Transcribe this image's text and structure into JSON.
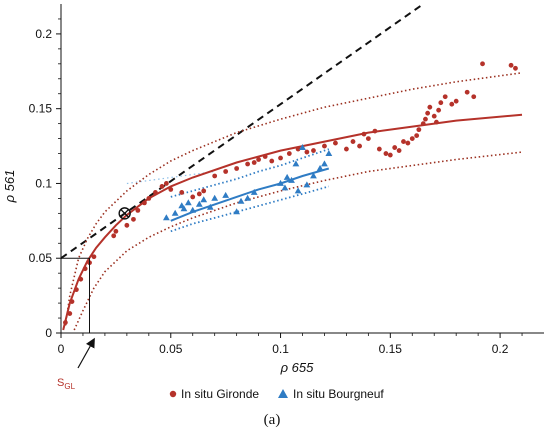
{
  "chart_data": {
    "type": "scatter",
    "title": "",
    "xlabel": "ρ 655",
    "ylabel": "ρ 561",
    "xlim": [
      0,
      0.22
    ],
    "ylim": [
      0,
      0.22
    ],
    "x_ticks": [
      "0",
      "0.05",
      "0.1",
      "0.15",
      "0.2"
    ],
    "y_ticks": [
      "0",
      "0.05",
      "0.1",
      "0.15",
      "0.2"
    ],
    "grid": false,
    "legend_position": "bottom",
    "panel_label": "(a)",
    "annotation_label": "S",
    "annotation_subscript": "GL",
    "colors": {
      "gironde": "#b5322a",
      "bourgneuf": "#2f7cc4",
      "envelope": "#9b3020",
      "dashed": "#111111"
    },
    "series": [
      {
        "name": "In situ Gironde",
        "marker": "circle",
        "points": [
          [
            0.002,
            0.007
          ],
          [
            0.004,
            0.013
          ],
          [
            0.005,
            0.021
          ],
          [
            0.007,
            0.029
          ],
          [
            0.009,
            0.036
          ],
          [
            0.011,
            0.043
          ],
          [
            0.013,
            0.047
          ],
          [
            0.015,
            0.051
          ],
          [
            0.024,
            0.065
          ],
          [
            0.025,
            0.068
          ],
          [
            0.03,
            0.072
          ],
          [
            0.033,
            0.076
          ],
          [
            0.035,
            0.082
          ],
          [
            0.038,
            0.087
          ],
          [
            0.04,
            0.09
          ],
          [
            0.043,
            0.094
          ],
          [
            0.046,
            0.098
          ],
          [
            0.048,
            0.1
          ],
          [
            0.05,
            0.096
          ],
          [
            0.055,
            0.094
          ],
          [
            0.06,
            0.091
          ],
          [
            0.063,
            0.093
          ],
          [
            0.065,
            0.095
          ],
          [
            0.07,
            0.105
          ],
          [
            0.075,
            0.108
          ],
          [
            0.08,
            0.11
          ],
          [
            0.085,
            0.113
          ],
          [
            0.088,
            0.114
          ],
          [
            0.09,
            0.116
          ],
          [
            0.093,
            0.118
          ],
          [
            0.096,
            0.115
          ],
          [
            0.1,
            0.117
          ],
          [
            0.104,
            0.12
          ],
          [
            0.108,
            0.123
          ],
          [
            0.112,
            0.121
          ],
          [
            0.115,
            0.122
          ],
          [
            0.12,
            0.125
          ],
          [
            0.125,
            0.127
          ],
          [
            0.13,
            0.123
          ],
          [
            0.133,
            0.128
          ],
          [
            0.136,
            0.125
          ],
          [
            0.138,
            0.133
          ],
          [
            0.14,
            0.13
          ],
          [
            0.143,
            0.135
          ],
          [
            0.145,
            0.123
          ],
          [
            0.148,
            0.12
          ],
          [
            0.15,
            0.119
          ],
          [
            0.152,
            0.124
          ],
          [
            0.154,
            0.122
          ],
          [
            0.156,
            0.128
          ],
          [
            0.158,
            0.127
          ],
          [
            0.16,
            0.13
          ],
          [
            0.162,
            0.132
          ],
          [
            0.163,
            0.136
          ],
          [
            0.165,
            0.14
          ],
          [
            0.166,
            0.143
          ],
          [
            0.167,
            0.147
          ],
          [
            0.168,
            0.151
          ],
          [
            0.17,
            0.145
          ],
          [
            0.171,
            0.141
          ],
          [
            0.172,
            0.149
          ],
          [
            0.173,
            0.154
          ],
          [
            0.175,
            0.158
          ],
          [
            0.178,
            0.153
          ],
          [
            0.18,
            0.155
          ],
          [
            0.185,
            0.161
          ],
          [
            0.188,
            0.158
          ],
          [
            0.192,
            0.18
          ],
          [
            0.205,
            0.179
          ],
          [
            0.207,
            0.177
          ]
        ]
      },
      {
        "name": "In situ Bourgneuf",
        "marker": "triangle",
        "points": [
          [
            0.048,
            0.077
          ],
          [
            0.052,
            0.08
          ],
          [
            0.055,
            0.085
          ],
          [
            0.056,
            0.083
          ],
          [
            0.058,
            0.087
          ],
          [
            0.06,
            0.082
          ],
          [
            0.063,
            0.086
          ],
          [
            0.065,
            0.089
          ],
          [
            0.068,
            0.084
          ],
          [
            0.07,
            0.09
          ],
          [
            0.075,
            0.092
          ],
          [
            0.08,
            0.081
          ],
          [
            0.082,
            0.088
          ],
          [
            0.085,
            0.09
          ],
          [
            0.088,
            0.094
          ],
          [
            0.1,
            0.1
          ],
          [
            0.102,
            0.097
          ],
          [
            0.103,
            0.104
          ],
          [
            0.105,
            0.102
          ],
          [
            0.107,
            0.113
          ],
          [
            0.108,
            0.095
          ],
          [
            0.11,
            0.124
          ],
          [
            0.112,
            0.099
          ],
          [
            0.115,
            0.105
          ],
          [
            0.118,
            0.11
          ],
          [
            0.12,
            0.113
          ],
          [
            0.122,
            0.12
          ]
        ]
      }
    ],
    "lines": {
      "dashed_1to1_like": [
        [
          0,
          0.05
        ],
        [
          0.165,
          0.22
        ]
      ],
      "gironde_fit": [
        [
          0.001,
          0.002
        ],
        [
          0.004,
          0.02
        ],
        [
          0.008,
          0.036
        ],
        [
          0.012,
          0.048
        ],
        [
          0.016,
          0.057
        ],
        [
          0.02,
          0.064
        ],
        [
          0.025,
          0.072
        ],
        [
          0.03,
          0.079
        ],
        [
          0.04,
          0.09
        ],
        [
          0.05,
          0.098
        ],
        [
          0.06,
          0.104
        ],
        [
          0.08,
          0.114
        ],
        [
          0.1,
          0.122
        ],
        [
          0.12,
          0.128
        ],
        [
          0.14,
          0.134
        ],
        [
          0.16,
          0.138
        ],
        [
          0.18,
          0.142
        ],
        [
          0.21,
          0.146
        ]
      ],
      "gironde_upper": [
        [
          0.002,
          0.005
        ],
        [
          0.004,
          0.025
        ],
        [
          0.008,
          0.05
        ],
        [
          0.012,
          0.063
        ],
        [
          0.016,
          0.073
        ],
        [
          0.02,
          0.081
        ],
        [
          0.03,
          0.095
        ],
        [
          0.04,
          0.106
        ],
        [
          0.05,
          0.115
        ],
        [
          0.06,
          0.122
        ],
        [
          0.08,
          0.134
        ],
        [
          0.1,
          0.143
        ],
        [
          0.12,
          0.151
        ],
        [
          0.14,
          0.157
        ],
        [
          0.16,
          0.163
        ],
        [
          0.18,
          0.168
        ],
        [
          0.21,
          0.174
        ]
      ],
      "gironde_lower": [
        [
          0.006,
          0.002
        ],
        [
          0.01,
          0.015
        ],
        [
          0.015,
          0.03
        ],
        [
          0.02,
          0.041
        ],
        [
          0.03,
          0.055
        ],
        [
          0.04,
          0.064
        ],
        [
          0.05,
          0.071
        ],
        [
          0.06,
          0.077
        ],
        [
          0.08,
          0.087
        ],
        [
          0.1,
          0.095
        ],
        [
          0.12,
          0.102
        ],
        [
          0.14,
          0.108
        ],
        [
          0.16,
          0.112
        ],
        [
          0.18,
          0.116
        ],
        [
          0.21,
          0.121
        ]
      ],
      "bourgneuf_fit": [
        [
          0.05,
          0.075
        ],
        [
          0.06,
          0.081
        ],
        [
          0.07,
          0.086
        ],
        [
          0.08,
          0.091
        ],
        [
          0.09,
          0.096
        ],
        [
          0.1,
          0.1
        ],
        [
          0.11,
          0.105
        ],
        [
          0.122,
          0.11
        ]
      ],
      "bourgneuf_upper": [
        [
          0.05,
          0.091
        ],
        [
          0.06,
          0.095
        ],
        [
          0.07,
          0.099
        ],
        [
          0.08,
          0.103
        ],
        [
          0.09,
          0.108
        ],
        [
          0.1,
          0.112
        ],
        [
          0.11,
          0.117
        ],
        [
          0.122,
          0.123
        ]
      ],
      "bourgneuf_lower": [
        [
          0.05,
          0.068
        ],
        [
          0.06,
          0.073
        ],
        [
          0.07,
          0.077
        ],
        [
          0.08,
          0.081
        ],
        [
          0.09,
          0.085
        ],
        [
          0.1,
          0.089
        ],
        [
          0.11,
          0.093
        ],
        [
          0.122,
          0.098
        ]
      ],
      "blue_faint_segment": [
        [
          0.03,
          0.1
        ],
        [
          0.07,
          0.108
        ]
      ],
      "sgl_guide": [
        [
          0,
          0.05
        ],
        [
          0.013,
          0.05
        ],
        [
          0.013,
          0
        ]
      ]
    },
    "intersection_marker": [
      0.029,
      0.08
    ],
    "sgl_point": [
      0.013,
      0
    ]
  }
}
